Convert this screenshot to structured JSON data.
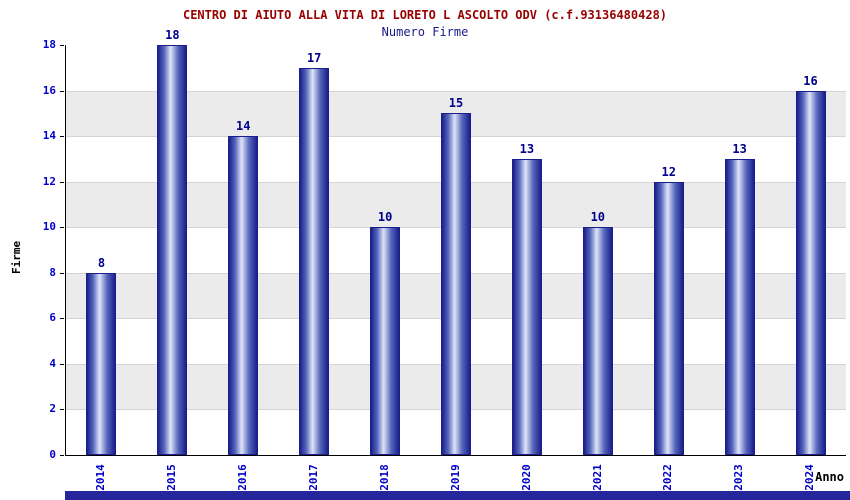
{
  "chart_data": {
    "type": "bar",
    "title": "CENTRO DI AIUTO ALLA VITA DI LORETO L ASCOLTO ODV (c.f.93136480428)",
    "subtitle": "Numero Firme",
    "xlabel": "Anno",
    "ylabel": "Firme",
    "categories": [
      "2014",
      "2015",
      "2016",
      "2017",
      "2018",
      "2019",
      "2020",
      "2021",
      "2022",
      "2023",
      "2024"
    ],
    "values": [
      8,
      18,
      14,
      17,
      10,
      15,
      13,
      10,
      12,
      13,
      16
    ],
    "ylim": [
      0,
      18
    ],
    "ytick_step": 2,
    "grid": true,
    "legend": "none",
    "colors": {
      "title": "#990000",
      "subtitle": "#1a1a8c",
      "tick_label": "#0000cc",
      "value_label": "#00008b",
      "bar_dark": "#1a1f8c",
      "bar_mid": "#5566bb",
      "bar_light": "#dfe4f8",
      "band_gray": "#ebebeb",
      "gridline": "#d4d4d4",
      "axis": "#000000",
      "bottom_strip": "#26269c"
    }
  }
}
